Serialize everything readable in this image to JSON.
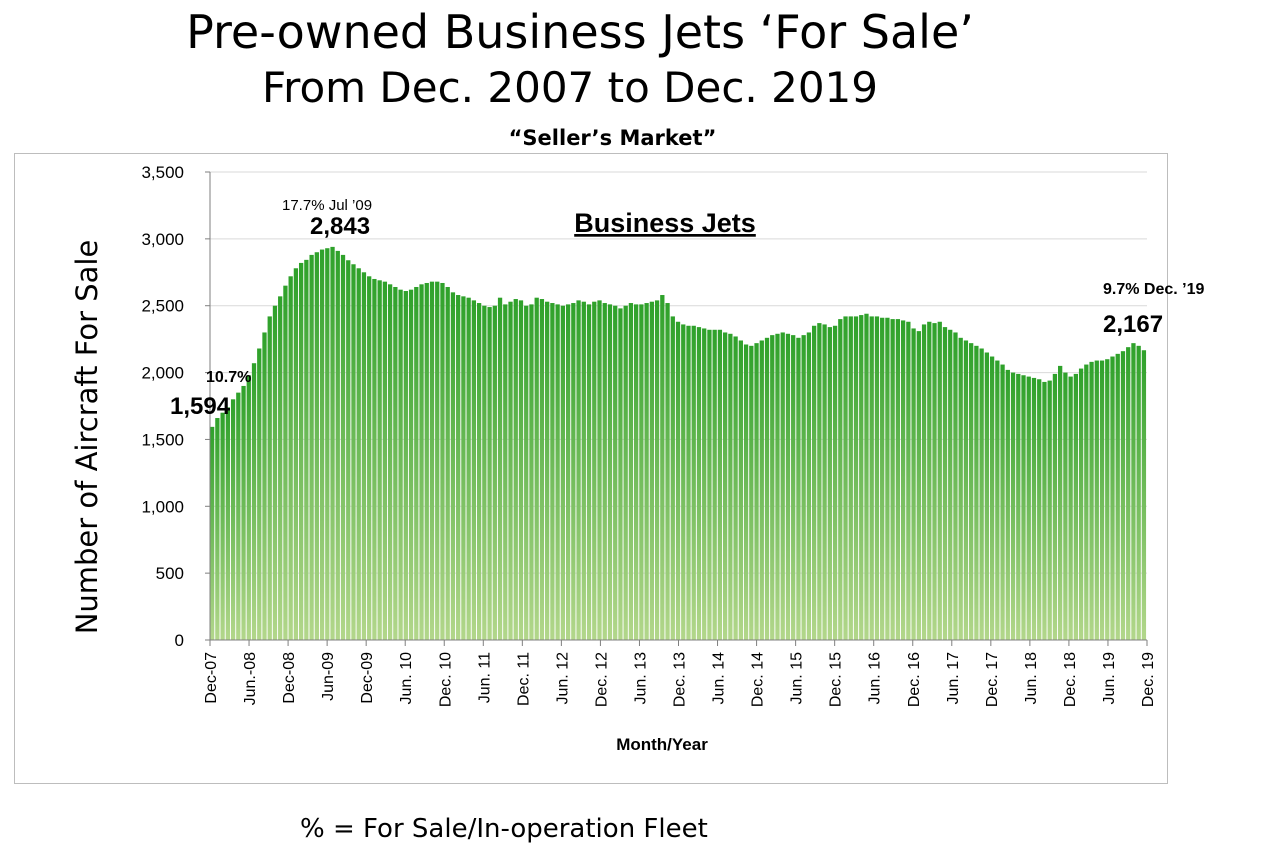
{
  "title": "Pre-owned Business Jets ‘For Sale’",
  "subtitle": "From Dec. 2007 to Dec. 2019",
  "tagline": "“Seller’s Market”",
  "footnote": "% = For Sale/In-operation Fleet",
  "colors": {
    "bar_top": "#2ea12a",
    "bar_bottom": "#b3d78b",
    "axis": "#7f7f7f",
    "frame": "#bdbdbd"
  },
  "chart_data": {
    "type": "bar",
    "title": "Business Jets",
    "xlabel": "Month/Year",
    "ylabel": "Number  of Aircraft For Sale",
    "ylim": [
      0,
      3500
    ],
    "yticks": [
      0,
      500,
      1000,
      1500,
      2000,
      2500,
      3000,
      3500
    ],
    "ytick_labels": [
      "0",
      "500",
      "1,000",
      "1,500",
      "2,000",
      "2,500",
      "3,000",
      "3,500"
    ],
    "grid": true,
    "x_tick_labels": [
      "Dec-07",
      "Jun.-08",
      "Dec-08",
      "Jun-09",
      "Dec-09",
      "Jun. 10",
      "Dec. 10",
      "Jun. 11",
      "Dec. 11",
      "Jun. 12",
      "Dec. 12",
      "Jun. 13",
      "Dec. 13",
      "Jun. 14",
      "Dec. 14",
      "Jun. 15",
      "Dec. 15",
      "Jun. 16",
      "Dec. 16",
      "Jun. 17",
      "Dec. 17",
      "Jun. 18",
      "Dec. 18",
      "Jun. 19",
      "Dec. 19"
    ],
    "series": [
      {
        "values": [
          1594,
          1660,
          1700,
          1740,
          1800,
          1850,
          1900,
          1980,
          2070,
          2180,
          2300,
          2420,
          2500,
          2570,
          2650,
          2720,
          2780,
          2820,
          2843,
          2880,
          2900,
          2920,
          2930,
          2940,
          2910,
          2880,
          2840,
          2810,
          2780,
          2750,
          2720,
          2700,
          2690,
          2680,
          2660,
          2640,
          2620,
          2610,
          2620,
          2640,
          2660,
          2670,
          2680,
          2680,
          2670,
          2640,
          2600,
          2580,
          2570,
          2560,
          2540,
          2520,
          2500,
          2490,
          2500,
          2560,
          2510,
          2530,
          2550,
          2540,
          2500,
          2510,
          2560,
          2550,
          2530,
          2520,
          2510,
          2500,
          2510,
          2520,
          2540,
          2530,
          2510,
          2530,
          2540,
          2520,
          2510,
          2500,
          2480,
          2500,
          2520,
          2510,
          2510,
          2520,
          2530,
          2540,
          2580,
          2520,
          2420,
          2380,
          2360,
          2350,
          2350,
          2340,
          2330,
          2320,
          2320,
          2320,
          2300,
          2290,
          2270,
          2240,
          2210,
          2200,
          2220,
          2240,
          2260,
          2280,
          2290,
          2300,
          2290,
          2280,
          2260,
          2280,
          2300,
          2350,
          2370,
          2360,
          2340,
          2350,
          2400,
          2420,
          2420,
          2420,
          2430,
          2440,
          2420,
          2420,
          2410,
          2410,
          2400,
          2400,
          2390,
          2380,
          2330,
          2310,
          2360,
          2380,
          2370,
          2380,
          2340,
          2320,
          2300,
          2260,
          2240,
          2220,
          2200,
          2180,
          2150,
          2120,
          2090,
          2060,
          2020,
          2000,
          1990,
          1980,
          1970,
          1960,
          1950,
          1930,
          1940,
          1990,
          2050,
          2000,
          1970,
          1990,
          2030,
          2060,
          2080,
          2090,
          2090,
          2100,
          2120,
          2140,
          2160,
          2190,
          2220,
          2200,
          2167
        ]
      }
    ],
    "annotations": [
      {
        "pct": "10.7%",
        "value": "1,594"
      },
      {
        "pct": "17.7% Jul ’09",
        "value": "2,843"
      },
      {
        "pct": "9.7% Dec. ’19",
        "value": "2,167"
      }
    ]
  }
}
